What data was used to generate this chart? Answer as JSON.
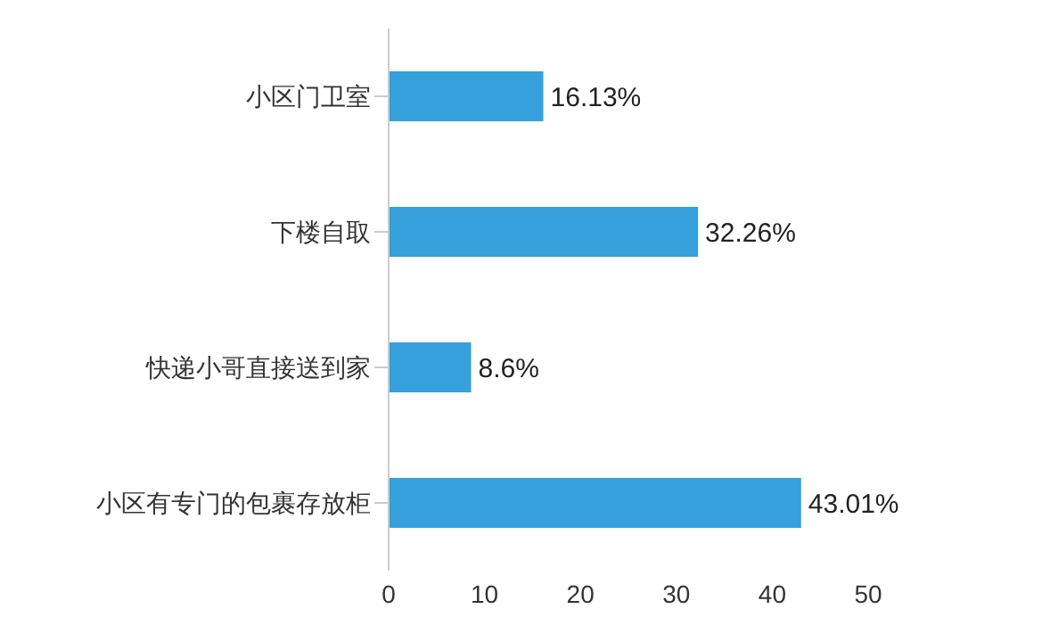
{
  "chart_data": {
    "type": "bar",
    "orientation": "horizontal",
    "categories": [
      "小区门卫室",
      "下楼自取",
      "快递小哥直接送到家",
      "小区有专门的包裹存放柜"
    ],
    "values": [
      16.13,
      32.26,
      8.6,
      43.01
    ],
    "value_labels": [
      "16.13%",
      "32.26%",
      "8.6%",
      "43.01%"
    ],
    "color": "#35a0dc",
    "xlim": [
      0,
      50
    ],
    "xticks": [
      0,
      10,
      20,
      30,
      40,
      50
    ],
    "grid": false
  }
}
